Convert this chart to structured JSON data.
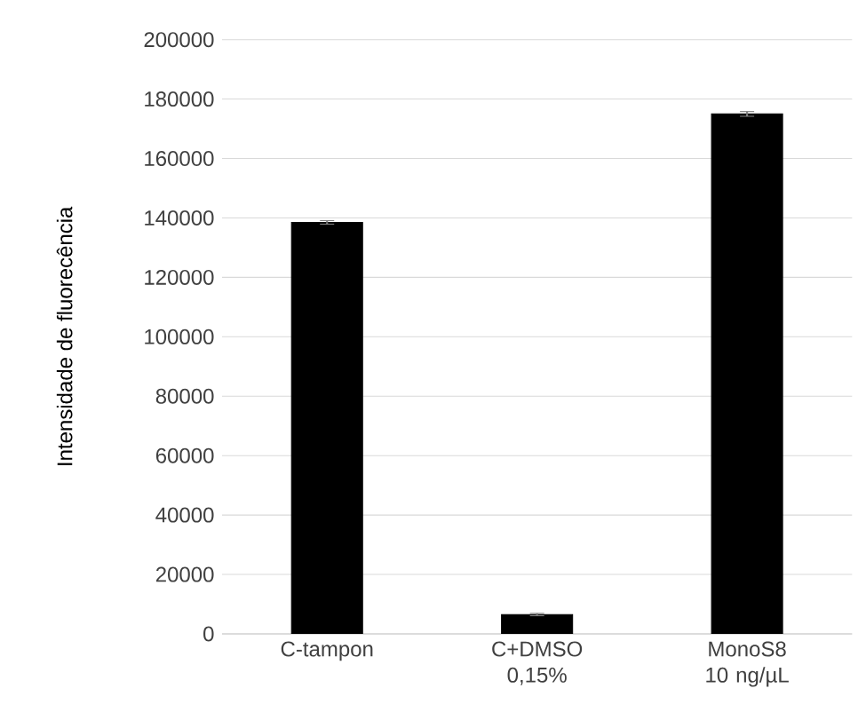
{
  "chart_data": {
    "type": "bar",
    "ylabel": "Intensidade de fluorecência",
    "categories": [
      "C-tampon",
      "C+DMSO 0,15%",
      "MonoS8 10 ng/µL"
    ],
    "values": [
      138500,
      6500,
      175000
    ],
    "errors": [
      600,
      400,
      800
    ],
    "color": "#000000",
    "ylim": [
      0,
      200000
    ],
    "yticks": [
      0,
      20000,
      40000,
      60000,
      80000,
      100000,
      120000,
      140000,
      160000,
      180000,
      200000
    ],
    "grid": "y"
  }
}
